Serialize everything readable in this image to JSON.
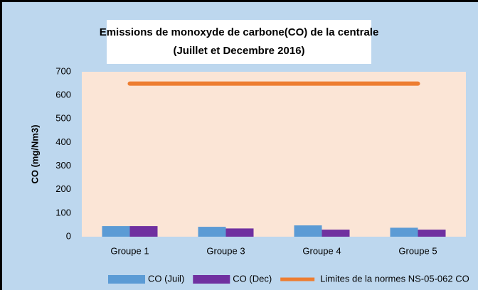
{
  "chart_data": {
    "type": "bar",
    "title": "Emissions de monoxyde de carbone(CO) de la centrale",
    "subtitle": "(Juillet et Decembre 2016)",
    "y_label": "CO (mg/Nm3)",
    "categories": [
      "Groupe 1",
      "Groupe 3",
      "Groupe 4",
      "Groupe 5"
    ],
    "series": [
      {
        "name": "CO (Juil)",
        "color": "#5b9bd5",
        "type": "bar",
        "values": [
          45,
          42,
          48,
          38
        ]
      },
      {
        "name": "CO (Dec)",
        "color": "#7030a0",
        "type": "bar",
        "values": [
          45,
          35,
          30,
          30
        ]
      },
      {
        "name": "Limites de la normes NS-05-062 CO",
        "color": "#ed7d31",
        "type": "line",
        "values": [
          650,
          650,
          650,
          650
        ]
      }
    ],
    "ylim": [
      0,
      700
    ],
    "yticks": [
      0,
      100,
      200,
      300,
      400,
      500,
      600,
      700
    ],
    "grid": false,
    "legend": "bottom"
  }
}
